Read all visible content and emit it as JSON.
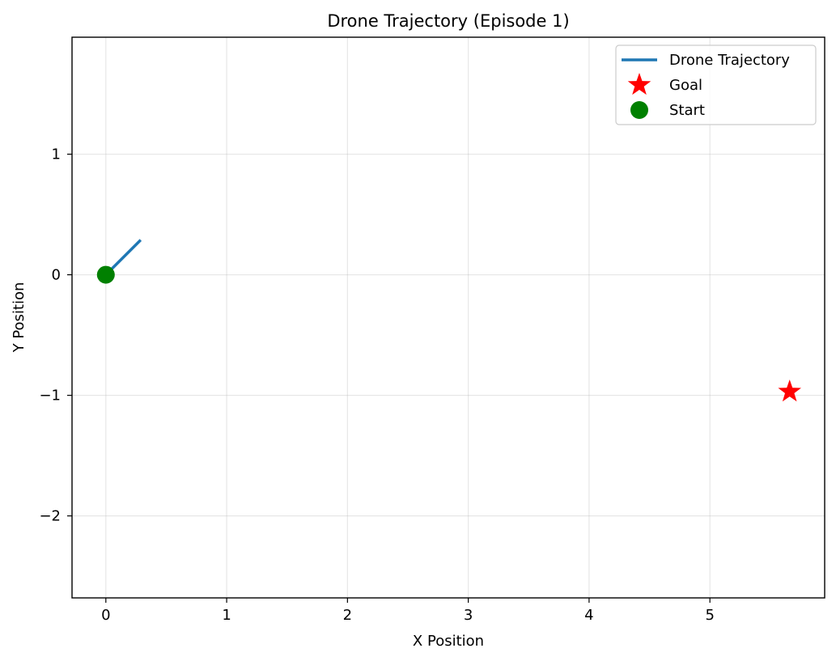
{
  "chart_data": {
    "type": "line",
    "title": "Drone Trajectory (Episode 1)",
    "xlabel": "X Position",
    "ylabel": "Y Position",
    "xlim": [
      -0.28,
      5.95
    ],
    "ylim": [
      -2.68,
      1.97
    ],
    "xticks": [
      0,
      1,
      2,
      3,
      4,
      5
    ],
    "yticks": [
      -2,
      -1,
      0,
      1
    ],
    "xtick_labels": [
      "0",
      "1",
      "2",
      "3",
      "4",
      "5"
    ],
    "ytick_labels": [
      "−2",
      "−1",
      "0",
      "1"
    ],
    "grid": true,
    "legend_position": "top-right",
    "series": [
      {
        "name": "Drone Trajectory",
        "kind": "line",
        "color": "#1f77b4",
        "x": [
          0,
          0.28
        ],
        "y": [
          0,
          0.28
        ]
      },
      {
        "name": "Goal",
        "kind": "scatter",
        "marker": "star",
        "color": "#ff0000",
        "x": [
          5.66
        ],
        "y": [
          -0.97
        ]
      },
      {
        "name": "Start",
        "kind": "scatter",
        "marker": "circle",
        "color": "#008000",
        "x": [
          0
        ],
        "y": [
          0
        ]
      }
    ]
  }
}
